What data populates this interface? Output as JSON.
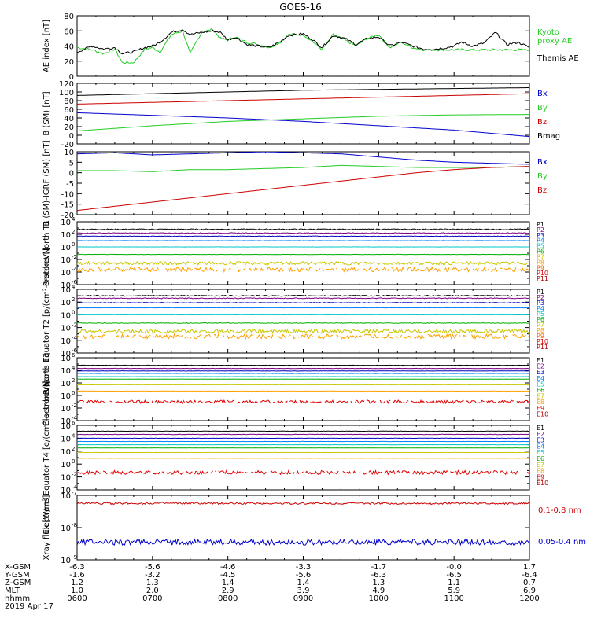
{
  "title": "GOES-16",
  "colors": {
    "black": "#000000",
    "red": "#cc0000",
    "green": "#22cc22",
    "blue": "#0000cc",
    "p1": "#000000",
    "p2": "#7a0080",
    "p3": "#0000c0",
    "p4": "#0080ff",
    "p5": "#00c8c8",
    "p6": "#00b000",
    "p7": "#c8c800",
    "p8": "#ffa000",
    "p9": "#ff6000",
    "p10": "#e00000",
    "p11": "#b00000"
  },
  "chart_data": [
    {
      "type": "line",
      "ylabel": "AE index [nT]",
      "ylim": [
        0,
        80
      ],
      "y_ticks": [
        "0",
        "20",
        "40",
        "60",
        "80"
      ],
      "series": [
        {
          "name": "Kyoto proxy AE",
          "color": "green",
          "x": [
            6.0,
            6.2,
            6.35,
            6.5,
            6.6,
            6.75,
            6.9,
            7.0,
            7.1,
            7.25,
            7.4,
            7.5,
            7.65,
            7.8,
            7.9,
            8.0,
            8.1,
            8.25,
            8.4,
            8.55,
            8.7,
            8.8,
            9.0,
            9.1,
            9.25,
            9.4,
            9.55,
            9.7,
            9.85,
            10.0,
            10.15,
            10.3,
            10.45,
            10.6,
            10.75,
            10.9,
            11.0,
            11.1,
            11.25,
            11.4,
            11.55,
            11.7,
            11.85,
            12.0
          ],
          "y": [
            38,
            35,
            30,
            36,
            18,
            18,
            36,
            38,
            32,
            55,
            60,
            30,
            58,
            62,
            50,
            48,
            52,
            45,
            42,
            38,
            45,
            55,
            55,
            48,
            35,
            55,
            48,
            40,
            50,
            55,
            38,
            45,
            38,
            35,
            35,
            35,
            35,
            35,
            35,
            35,
            35,
            35,
            35,
            35
          ]
        },
        {
          "name": "Themis AE",
          "color": "black",
          "x": [
            6.0,
            6.2,
            6.35,
            6.5,
            6.6,
            6.75,
            6.9,
            7.0,
            7.1,
            7.25,
            7.4,
            7.5,
            7.65,
            7.8,
            7.9,
            8.0,
            8.1,
            8.25,
            8.4,
            8.55,
            8.7,
            8.8,
            9.0,
            9.1,
            9.25,
            9.4,
            9.55,
            9.7,
            9.85,
            10.0,
            10.15,
            10.3,
            10.45,
            10.6,
            10.75,
            10.9,
            11.0,
            11.1,
            11.25,
            11.4,
            11.55,
            11.7,
            11.85,
            12.0
          ],
          "y": [
            32,
            40,
            36,
            38,
            30,
            32,
            38,
            40,
            45,
            58,
            62,
            55,
            58,
            60,
            58,
            48,
            52,
            42,
            40,
            38,
            46,
            54,
            56,
            50,
            38,
            54,
            50,
            42,
            50,
            52,
            40,
            45,
            40,
            36,
            36,
            38,
            40,
            45,
            40,
            44,
            58,
            42,
            45,
            38
          ]
        }
      ],
      "legend": [
        {
          "text": "Kyoto\nproxy AE",
          "color": "green"
        },
        {
          "text": "Themis AE",
          "color": "black"
        }
      ]
    },
    {
      "type": "line",
      "ylabel": "B (SM) [nT]",
      "ylim": [
        -20,
        120
      ],
      "y_ticks": [
        "-20",
        "0",
        "20",
        "40",
        "60",
        "80",
        "100",
        "120"
      ],
      "series": [
        {
          "name": "Bx",
          "color": "blue",
          "x": [
            6,
            7,
            8,
            9,
            10,
            11,
            12
          ],
          "y": [
            52,
            46,
            40,
            32,
            22,
            12,
            -3
          ]
        },
        {
          "name": "By",
          "color": "green",
          "x": [
            6,
            7,
            8,
            9,
            10,
            11,
            12
          ],
          "y": [
            10,
            22,
            32,
            38,
            44,
            47,
            48
          ]
        },
        {
          "name": "Bz",
          "color": "red",
          "x": [
            6,
            7,
            8,
            9,
            10,
            11,
            12
          ],
          "y": [
            72,
            76,
            80,
            84,
            88,
            92,
            96
          ]
        },
        {
          "name": "Bmag",
          "color": "black",
          "x": [
            6,
            7,
            8,
            9,
            10,
            11,
            12
          ],
          "y": [
            92,
            96,
            100,
            104,
            106,
            108,
            110
          ]
        }
      ],
      "legend": [
        {
          "text": "Bx",
          "color": "blue"
        },
        {
          "text": "By",
          "color": "green"
        },
        {
          "text": "Bz",
          "color": "red"
        },
        {
          "text": "Bmag",
          "color": "black"
        }
      ]
    },
    {
      "type": "line",
      "ylabel": "B (SM)-IGRF (SM) [nT]",
      "ylim": [
        -20,
        10
      ],
      "y_ticks": [
        "-20",
        "-15",
        "-10",
        "-5",
        "0",
        "5",
        "10"
      ],
      "series": [
        {
          "name": "Bx",
          "color": "blue",
          "x": [
            6,
            6.5,
            7,
            7.5,
            8,
            8.5,
            9,
            9.5,
            10,
            10.5,
            11,
            11.5,
            12
          ],
          "y": [
            9,
            9.5,
            8.5,
            9,
            9.5,
            10,
            9.5,
            9,
            7.5,
            6,
            5,
            4.5,
            4
          ]
        },
        {
          "name": "By",
          "color": "green",
          "x": [
            6,
            6.5,
            7,
            7.5,
            8,
            8.5,
            9,
            9.5,
            10,
            10.5,
            11,
            11.5,
            12
          ],
          "y": [
            1,
            1,
            0.5,
            1.5,
            1.5,
            2,
            2.5,
            3.5,
            3,
            2.5,
            2.5,
            2.5,
            3
          ]
        },
        {
          "name": "Bz",
          "color": "red",
          "x": [
            6,
            6.5,
            7,
            7.5,
            8,
            8.5,
            9,
            9.5,
            10,
            10.5,
            11,
            11.5,
            12
          ],
          "y": [
            -18,
            -16,
            -14,
            -12,
            -10,
            -8,
            -6,
            -4,
            -2,
            0,
            1.5,
            2.5,
            3
          ]
        }
      ],
      "legend": [
        {
          "text": "Bx",
          "color": "blue"
        },
        {
          "text": "By",
          "color": "green"
        },
        {
          "text": "Bz",
          "color": "red"
        }
      ]
    },
    {
      "type": "line",
      "yscale": "log",
      "ylabel": "Protons North T1",
      "ylim_exp": [
        -6,
        4
      ],
      "series": [
        {
          "name": "P1",
          "color": "p1",
          "level": 2.8,
          "jitter": 0.08
        },
        {
          "name": "P2",
          "color": "p2",
          "level": 2.2,
          "jitter": 0.06
        },
        {
          "name": "P3",
          "color": "p3",
          "level": 1.7,
          "jitter": 0.04
        },
        {
          "name": "P4",
          "color": "p4",
          "level": 1.0,
          "jitter": 0.02
        },
        {
          "name": "P5",
          "color": "p5",
          "level": 0.0,
          "jitter": 0.01
        },
        {
          "name": "P6",
          "color": "p6",
          "level": -1.2,
          "jitter": 0.03
        },
        {
          "name": "P7",
          "color": "p7",
          "level": -2.6,
          "jitter": 0.25
        },
        {
          "name": "P8",
          "color": "p8",
          "level": -3.6,
          "jitter": 0.35,
          "gappy": true
        }
      ],
      "legend": [
        "P1",
        "P2",
        "P3",
        "P4",
        "P5",
        "P6",
        "P7",
        "P8",
        "P9",
        "P10",
        "P11"
      ]
    },
    {
      "type": "line",
      "yscale": "log",
      "ylabel": "Protons Equator T2 [p/(cm²-s-sr-keV)]",
      "ylim_exp": [
        -6,
        4
      ],
      "series": [
        {
          "name": "P1",
          "color": "p1",
          "level": 3.0,
          "jitter": 0.08
        },
        {
          "name": "P2",
          "color": "p2",
          "level": 2.6,
          "jitter": 0.06
        },
        {
          "name": "P3",
          "color": "p3",
          "level": 1.9,
          "jitter": 0.05
        },
        {
          "name": "P4",
          "color": "p4",
          "level": 1.1,
          "jitter": 0.02
        },
        {
          "name": "P5",
          "color": "p5",
          "level": 0.0,
          "jitter": 0.01
        },
        {
          "name": "P6",
          "color": "p6",
          "level": -1.3,
          "jitter": 0.05
        },
        {
          "name": "P7",
          "color": "p7",
          "level": -2.6,
          "jitter": 0.3
        },
        {
          "name": "P8",
          "color": "p8",
          "level": -3.4,
          "jitter": 0.35,
          "gappy": true
        }
      ],
      "legend": [
        "P1",
        "P2",
        "P3",
        "P4",
        "P5",
        "P6",
        "P7",
        "P8",
        "P9",
        "P10",
        "P11"
      ]
    },
    {
      "type": "line",
      "yscale": "log",
      "ylabel": "Electrons North T3",
      "ylim_exp": [
        -4,
        6
      ],
      "series": [
        {
          "name": "E1",
          "color": "p1",
          "level": 4.8,
          "jitter": 0.03
        },
        {
          "name": "E2",
          "color": "p2",
          "level": 4.3,
          "jitter": 0.03
        },
        {
          "name": "E3",
          "color": "p3",
          "level": 3.9,
          "jitter": 0.02
        },
        {
          "name": "E4",
          "color": "p4",
          "level": 3.5,
          "jitter": 0.02
        },
        {
          "name": "E5",
          "color": "p5",
          "level": 3.0,
          "jitter": 0.01
        },
        {
          "name": "E6",
          "color": "p6",
          "level": 2.6,
          "jitter": 0.01
        },
        {
          "name": "E7",
          "color": "p7",
          "level": 1.7,
          "jitter": 0.01
        },
        {
          "name": "E8",
          "color": "p8",
          "level": 0.7,
          "jitter": 0.01
        },
        {
          "name": "E9",
          "color": "p10",
          "level": -1.0,
          "jitter": 0.25,
          "gappy": true
        }
      ],
      "legend": [
        "E1",
        "E2",
        "E3",
        "E4",
        "E5",
        "E6",
        "E7",
        "E8",
        "E9",
        "E10"
      ]
    },
    {
      "type": "line",
      "yscale": "log",
      "ylabel": "Electrons Equator T4 [e/(cm²-s-sr-keV)]",
      "ylim_exp": [
        -4,
        6
      ],
      "series": [
        {
          "name": "E1",
          "color": "p1",
          "level": 5.1,
          "jitter": 0.03
        },
        {
          "name": "E2",
          "color": "p2",
          "level": 4.6,
          "jitter": 0.03
        },
        {
          "name": "E3",
          "color": "p3",
          "level": 4.0,
          "jitter": 0.02
        },
        {
          "name": "E4",
          "color": "p4",
          "level": 3.5,
          "jitter": 0.02
        },
        {
          "name": "E5",
          "color": "p5",
          "level": 3.0,
          "jitter": 0.01
        },
        {
          "name": "E6",
          "color": "p6",
          "level": 2.5,
          "jitter": 0.01
        },
        {
          "name": "E7",
          "color": "p7",
          "level": 1.8,
          "jitter": 0.01
        },
        {
          "name": "E8",
          "color": "p8",
          "level": 0.9,
          "jitter": 0.01
        },
        {
          "name": "E9",
          "color": "p10",
          "level": -1.3,
          "jitter": 0.3,
          "gappy": true
        }
      ],
      "legend": [
        "E1",
        "E2",
        "E3",
        "E4",
        "E5",
        "E6",
        "E7",
        "E8",
        "E9",
        "E10"
      ]
    },
    {
      "type": "line",
      "yscale": "log",
      "ylabel": "Xray flux [W/m²]",
      "ylim_exp": [
        -9,
        -7
      ],
      "series": [
        {
          "name": "0.1-0.8 nm",
          "color": "red",
          "level": -7.25,
          "jitter": 0.03
        },
        {
          "name": "0.05-0.4 nm",
          "color": "blue",
          "level": -8.45,
          "jitter": 0.09
        }
      ],
      "legend": [
        {
          "text": "0.1-0.8 nm",
          "color": "red"
        },
        {
          "text": "0.05-0.4 nm",
          "color": "blue"
        }
      ]
    }
  ],
  "x_axis": {
    "range": [
      6,
      12
    ],
    "ticks": [
      6,
      7,
      8,
      9,
      10,
      11,
      12
    ],
    "rows": [
      {
        "label": "X-GSM",
        "values": [
          "-6.3",
          "-5.6",
          "-4.6",
          "-3.3",
          "-1.7",
          "-0.0",
          "1.7"
        ]
      },
      {
        "label": "Y-GSM",
        "values": [
          "-1.6",
          "-3.2",
          "-4.5",
          "-5.6",
          "-6.3",
          "-6.5",
          "-6.4"
        ]
      },
      {
        "label": "Z-GSM",
        "values": [
          "1.2",
          "1.3",
          "1.4",
          "1.4",
          "1.3",
          "1.1",
          "0.7"
        ]
      },
      {
        "label": "MLT",
        "values": [
          "1.0",
          "2.0",
          "2.9",
          "3.9",
          "4.9",
          "5.9",
          "6.9"
        ]
      },
      {
        "label": "hhmm",
        "values": [
          "0600",
          "0700",
          "0800",
          "0900",
          "1000",
          "1100",
          "1200"
        ]
      }
    ],
    "date": "2019 Apr 17"
  }
}
